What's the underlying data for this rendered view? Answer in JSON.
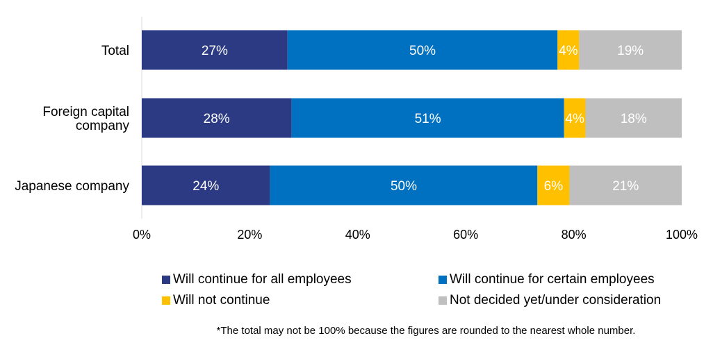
{
  "chart_data": {
    "type": "bar",
    "orientation": "horizontal",
    "stacked": true,
    "categories": [
      "Total",
      "Foreign capital\ncompany",
      "Japanese company"
    ],
    "series": [
      {
        "name": "Will continue for all employees",
        "color": "#2B3A83",
        "values": [
          27,
          28,
          24
        ],
        "labels": [
          "27%",
          "28%",
          "24%"
        ]
      },
      {
        "name": "Will continue for certain employees",
        "color": "#0070C0",
        "values": [
          50,
          51,
          50
        ],
        "labels": [
          "50%",
          "51%",
          "50%"
        ]
      },
      {
        "name": "Will not continue",
        "color": "#FFC000",
        "values": [
          4,
          4,
          6
        ],
        "labels": [
          "4%",
          "4%",
          "6%"
        ]
      },
      {
        "name": "Not decided yet/under consideration",
        "color": "#BFBFBF",
        "values": [
          19,
          18,
          21
        ],
        "labels": [
          "19%",
          "18%",
          "21%"
        ]
      }
    ],
    "xlim": [
      0,
      100
    ],
    "xticks": [
      "0%",
      "20%",
      "40%",
      "60%",
      "80%",
      "100%"
    ],
    "grid": false,
    "legend_position": "bottom"
  },
  "footnote": "*The total may not be 100% because the figures are rounded to the nearest whole number."
}
